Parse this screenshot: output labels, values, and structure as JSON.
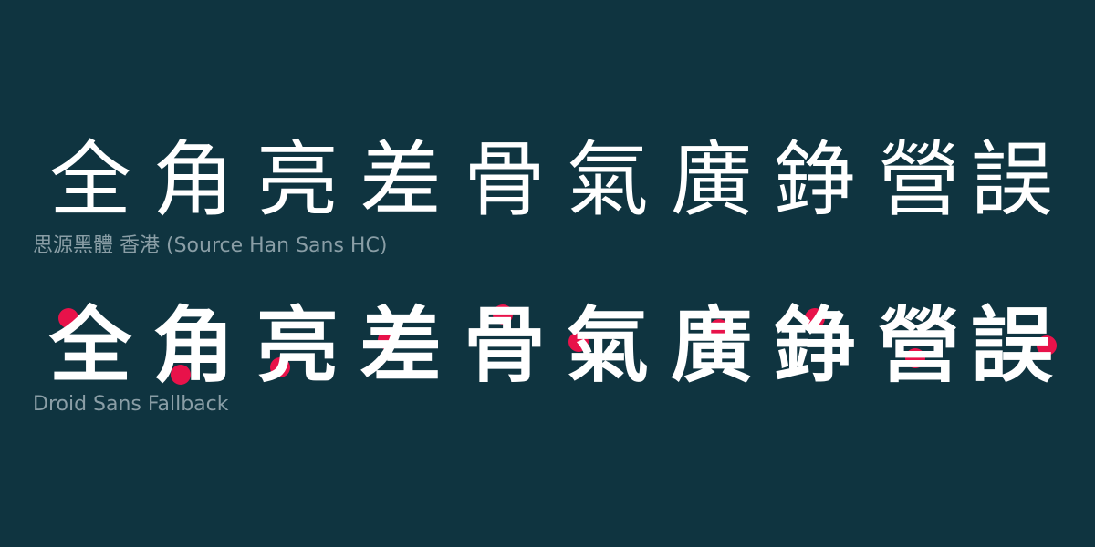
{
  "glyphs": [
    "全",
    "角",
    "亮",
    "差",
    "骨",
    "氣",
    "廣",
    "錚",
    "營",
    "誤"
  ],
  "font_samples": [
    {
      "caption": "思源黑體 香港 (Source Han Sans HC)"
    },
    {
      "caption": "Droid Sans Fallback"
    }
  ],
  "colors": {
    "background": "#0f3440",
    "glyph": "#ffffff",
    "caption": "#8a9ea6",
    "marker": "#e8124a"
  },
  "markers": {
    "shape": "circle",
    "count": 10
  }
}
